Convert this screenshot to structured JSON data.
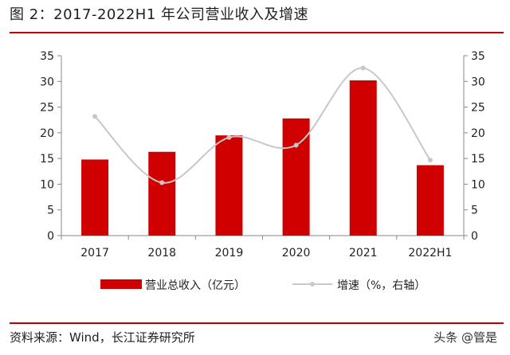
{
  "title": "图 2：2017-2022H1 年公司营业收入及增速",
  "source": "资料来源：Wind，长江证券研究所",
  "watermark": "头条 @管是",
  "colors": {
    "bar": "#d00000",
    "line": "#c8c8c8",
    "rule": "#c00000"
  },
  "chart_data": {
    "type": "bar+line",
    "categories": [
      "2017",
      "2018",
      "2019",
      "2020",
      "2021",
      "2022H1"
    ],
    "series": [
      {
        "name": "营业总收入（亿元）",
        "type": "bar",
        "axis": "left",
        "values": [
          14.8,
          16.3,
          19.5,
          22.8,
          30.2,
          13.7
        ]
      },
      {
        "name": "增速（%，右轴）",
        "type": "line",
        "axis": "right",
        "values": [
          23.2,
          10.3,
          19.1,
          17.6,
          32.6,
          14.7
        ]
      }
    ],
    "y_left": {
      "min": 0,
      "max": 35,
      "step": 5,
      "ticks": [
        "0",
        "5",
        "10",
        "15",
        "20",
        "25",
        "30",
        "35"
      ]
    },
    "y_right": {
      "min": 0,
      "max": 35,
      "step": 5,
      "ticks": [
        "0",
        "5",
        "10",
        "15",
        "20",
        "25",
        "30",
        "35"
      ]
    },
    "grid": false,
    "legend": "bottom"
  }
}
